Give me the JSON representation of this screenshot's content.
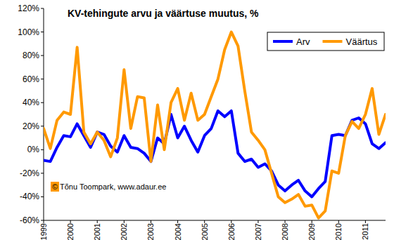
{
  "chart_data": {
    "type": "line",
    "title": "KV-tehingute arvu ja väärtuse muutus, %",
    "annotations": [
      "© Tõnu Toompark, www.adaur.ee"
    ],
    "x": [
      1999,
      1999.25,
      1999.5,
      1999.75,
      2000,
      2000.25,
      2000.5,
      2000.75,
      2001,
      2001.25,
      2001.5,
      2001.75,
      2002,
      2002.25,
      2002.5,
      2002.75,
      2003,
      2003.25,
      2003.5,
      2003.75,
      2004,
      2004.25,
      2004.5,
      2004.75,
      2005,
      2005.25,
      2005.5,
      2005.75,
      2006,
      2006.25,
      2006.5,
      2006.75,
      2007,
      2007.25,
      2007.5,
      2007.75,
      2008,
      2008.25,
      2008.5,
      2008.75,
      2009,
      2009.25,
      2009.5,
      2009.75,
      2010,
      2010.25,
      2010.5,
      2010.75,
      2011,
      2011.25,
      2011.5,
      2011.75
    ],
    "series": [
      {
        "name": "Arv",
        "color": "#0000ff",
        "values": [
          -9,
          -10,
          2,
          12,
          11,
          22,
          12,
          2,
          15,
          13,
          3,
          -2,
          12,
          2,
          1,
          -3,
          -10,
          10,
          5,
          30,
          10,
          20,
          8,
          -2,
          12,
          18,
          33,
          28,
          33,
          -3,
          -10,
          -8,
          -15,
          -12,
          -18,
          -30,
          -35,
          -30,
          -26,
          -35,
          -40,
          -33,
          -27,
          12,
          13,
          12,
          25,
          27,
          22,
          5,
          1,
          6
        ]
      },
      {
        "name": "Väärtus",
        "color": "#ff9900",
        "values": [
          18,
          1,
          25,
          32,
          30,
          87,
          15,
          5,
          15,
          8,
          -6,
          10,
          68,
          18,
          45,
          44,
          -10,
          38,
          0,
          40,
          52,
          25,
          48,
          25,
          30,
          45,
          60,
          85,
          100,
          88,
          50,
          15,
          8,
          0,
          -20,
          -40,
          -45,
          -42,
          -38,
          -48,
          -47,
          -58,
          -52,
          -18,
          -20,
          12,
          24,
          18,
          30,
          52,
          13,
          30
        ]
      }
    ],
    "xlim": [
      1999,
      2011.75
    ],
    "xticks": [
      1999,
      2000,
      2001,
      2002,
      2003,
      2004,
      2005,
      2006,
      2007,
      2008,
      2009,
      2010,
      2011
    ],
    "ylim": [
      -60,
      120
    ],
    "yticks": [
      {
        "value": -60,
        "label": "-60%"
      },
      {
        "value": -40,
        "label": "-40%"
      },
      {
        "value": -20,
        "label": "-20%"
      },
      {
        "value": 0,
        "label": "0%"
      },
      {
        "value": 20,
        "label": "20%"
      },
      {
        "value": 40,
        "label": "40%"
      },
      {
        "value": 60,
        "label": "60%"
      },
      {
        "value": 80,
        "label": "80%"
      },
      {
        "value": 100,
        "label": "100%"
      },
      {
        "value": 120,
        "label": "120%"
      }
    ],
    "grid": false,
    "legend": "top-right"
  }
}
